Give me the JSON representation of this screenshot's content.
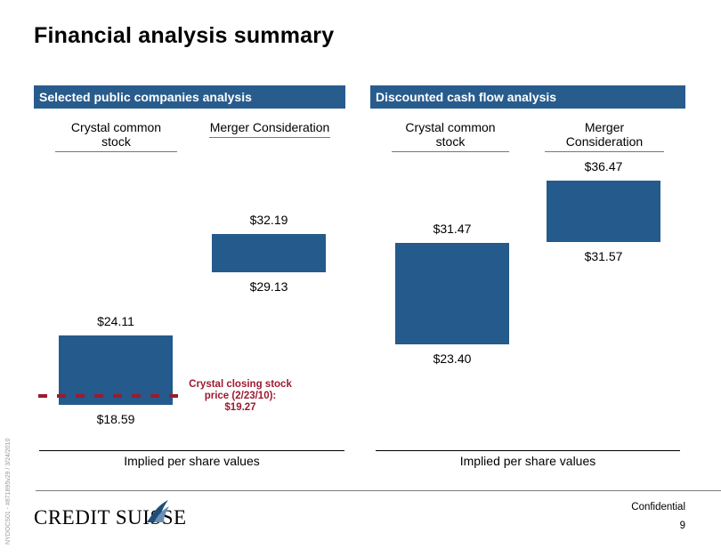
{
  "title": "Financial analysis summary",
  "colors": {
    "header_bg": "#285c8d",
    "box_fill": "#245a8c",
    "closing_line": "#9b1b30"
  },
  "panels": [
    {
      "header": "Selected public companies analysis",
      "columns": [
        "Crystal common stock",
        "Merger Consideration"
      ],
      "axis_label": "Implied per share values"
    },
    {
      "header": "Discounted cash flow analysis",
      "columns": [
        "Crystal common stock",
        "Merger Consideration"
      ],
      "axis_label": "Implied per share values"
    }
  ],
  "chart_data": [
    {
      "type": "bar",
      "title": "Selected public companies analysis",
      "categories": [
        "Crystal common stock",
        "Merger Consideration"
      ],
      "ranges": [
        {
          "category": "Crystal common stock",
          "low": 18.59,
          "high": 24.11,
          "low_label": "$18.59",
          "high_label": "$24.11"
        },
        {
          "category": "Merger Consideration",
          "low": 29.13,
          "high": 32.19,
          "low_label": "$29.13",
          "high_label": "$32.19"
        }
      ],
      "xlabel": "Implied per share values",
      "reference_line": {
        "value": 19.27,
        "label": "Crystal closing stock price (2/23/10): $19.27"
      }
    },
    {
      "type": "bar",
      "title": "Discounted cash flow analysis",
      "categories": [
        "Crystal common stock",
        "Merger Consideration"
      ],
      "ranges": [
        {
          "category": "Crystal common stock",
          "low": 23.4,
          "high": 31.47,
          "low_label": "$23.40",
          "high_label": "$31.47"
        },
        {
          "category": "Merger Consideration",
          "low": 31.57,
          "high": 36.47,
          "low_label": "$31.57",
          "high_label": "$36.47"
        }
      ],
      "xlabel": "Implied per share values"
    }
  ],
  "annotation": {
    "line1": "Crystal closing stock",
    "line2": "price (2/23/10):",
    "line3": "$19.27"
  },
  "footer": {
    "logo": "CREDIT SUISSE",
    "confidential": "Confidential",
    "page_number": "9",
    "side_text": "NYDOCS01 - #871895v29 / 3/24/2010"
  }
}
